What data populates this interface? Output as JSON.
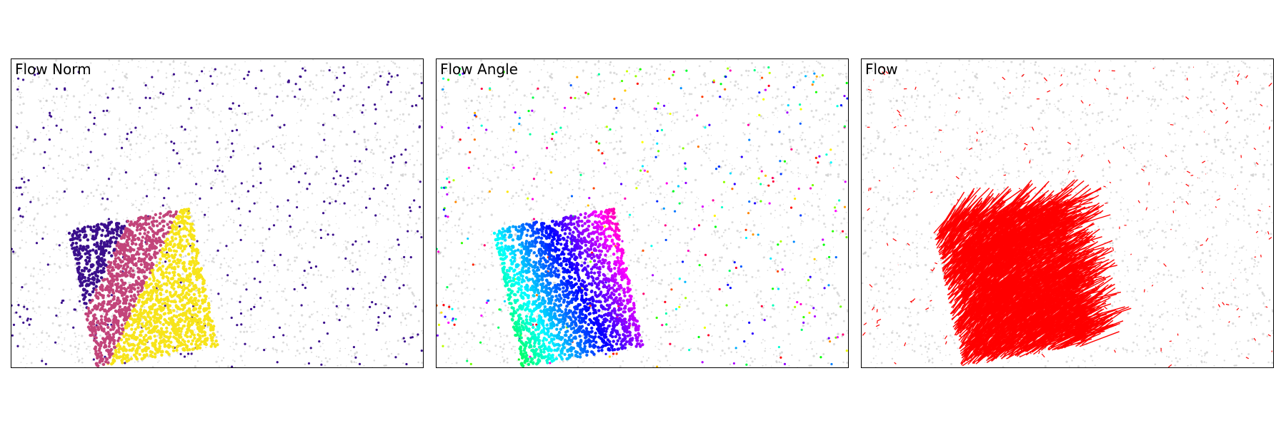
{
  "panels": [
    {
      "id": "norm",
      "title": "Flow Norm",
      "visualization": "flow-magnitude-colormap"
    },
    {
      "id": "angle",
      "title": "Flow Angle",
      "visualization": "flow-direction-hue-wheel"
    },
    {
      "id": "flow",
      "title": "Flow",
      "visualization": "flow-vectors"
    }
  ],
  "colors": {
    "background_points": "#bdbdbd",
    "norm_low": "#3b0f8c",
    "norm_mid": "#c2447a",
    "norm_high": "#f7e41a",
    "vector": "#ff0000",
    "frame": "#000000"
  }
}
